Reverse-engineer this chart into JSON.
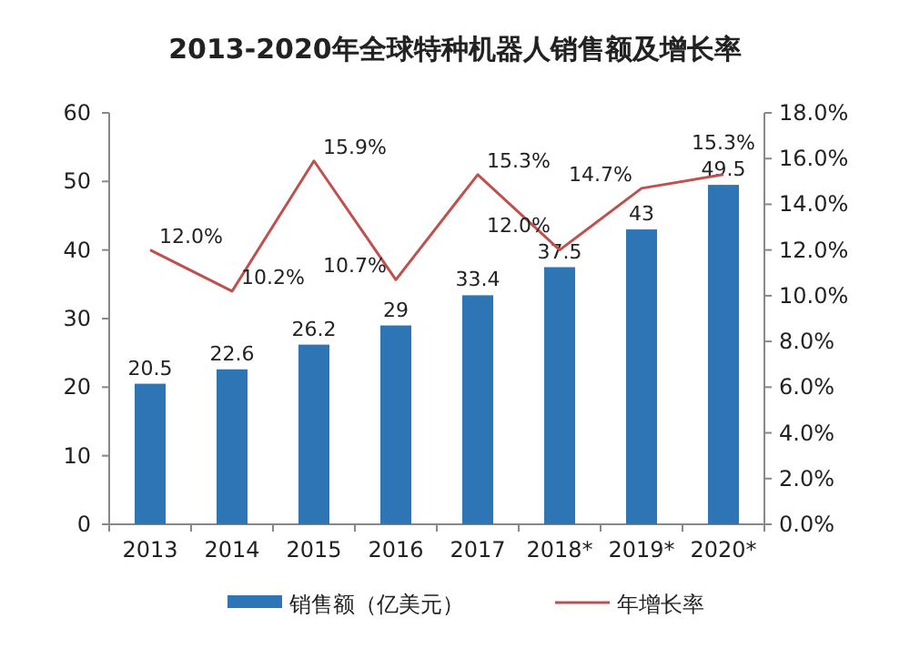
{
  "chart_data": {
    "type": "bar",
    "title": "2013-2020年全球特种机器人销售额及增长率",
    "categories": [
      "2013",
      "2014",
      "2015",
      "2016",
      "2017",
      "2018*",
      "2019*",
      "2020*"
    ],
    "series": [
      {
        "name": "销售额（亿美元）",
        "color": "#2e75b6",
        "values": [
          20.5,
          22.6,
          26.2,
          29,
          33.4,
          37.5,
          43,
          49.5
        ],
        "value_labels": [
          "20.5",
          "22.6",
          "26.2",
          "29",
          "33.4",
          "37.5",
          "43",
          "49.5"
        ]
      },
      {
        "name": "年增长率",
        "type": "line",
        "axis": "y2",
        "color": "#c0504d",
        "values": [
          12.0,
          10.2,
          15.9,
          10.7,
          15.3,
          12.0,
          14.7,
          15.3
        ],
        "value_labels": [
          "12.0%",
          "10.2%",
          "15.9%",
          "10.7%",
          "15.3%",
          "12.0%",
          "14.7%",
          "15.3%"
        ]
      }
    ],
    "ylim": [
      0,
      60
    ],
    "yticks": [
      0,
      10,
      20,
      30,
      40,
      50,
      60
    ],
    "y2lim": [
      0,
      18
    ],
    "y2ticks": [
      {
        "value": 0,
        "label": "0.0%"
      },
      {
        "value": 2,
        "label": "2.0%"
      },
      {
        "value": 4,
        "label": "4.0%"
      },
      {
        "value": 6,
        "label": "6.0%"
      },
      {
        "value": 8,
        "label": "8.0%"
      },
      {
        "value": 10,
        "label": "10.0%"
      },
      {
        "value": 12,
        "label": "12.0%"
      },
      {
        "value": 14,
        "label": "14.0%"
      },
      {
        "value": 16,
        "label": "16.0%"
      },
      {
        "value": 18,
        "label": "18.0%"
      }
    ],
    "grid": false,
    "legend": "bottom",
    "marker": "none"
  }
}
